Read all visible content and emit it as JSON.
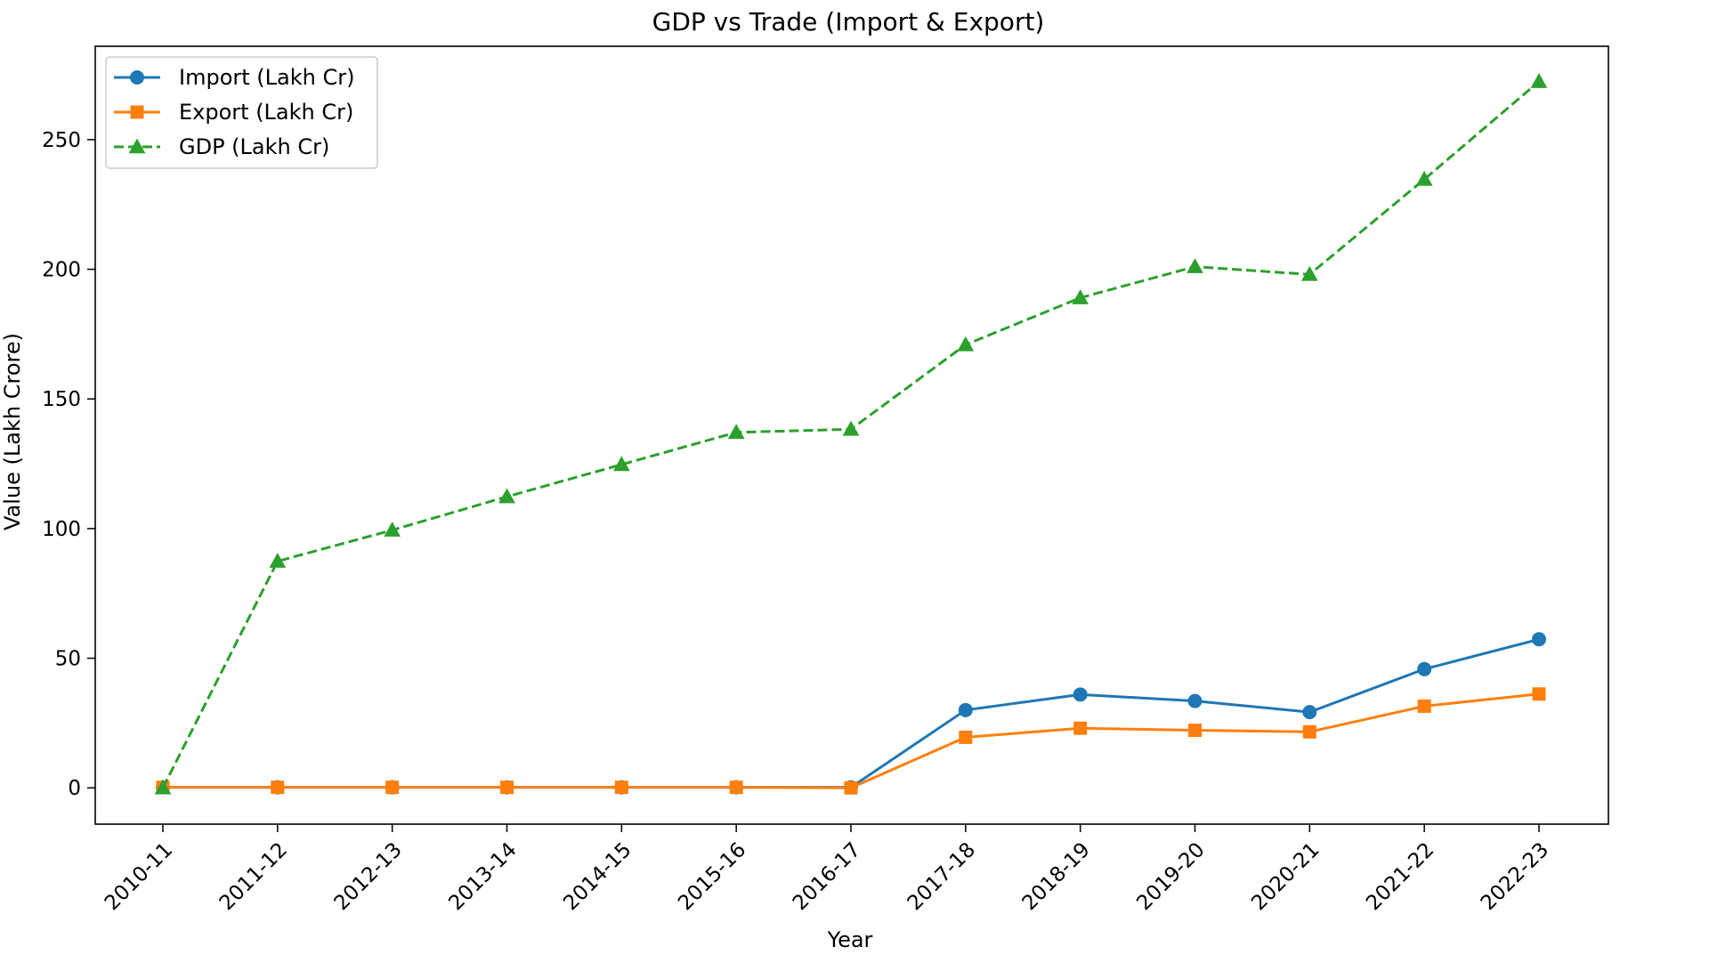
{
  "chart_data": {
    "type": "line",
    "title": "GDP vs Trade (Import & Export)",
    "xlabel": "Year",
    "ylabel": "Value (Lakh Crore)",
    "categories": [
      "2010-11",
      "2011-12",
      "2012-13",
      "2013-14",
      "2014-15",
      "2015-16",
      "2016-17",
      "2017-18",
      "2018-19",
      "2019-20",
      "2020-21",
      "2021-22",
      "2022-23"
    ],
    "ylim": [
      -14,
      286
    ],
    "yticks": [
      0,
      50,
      100,
      150,
      200,
      250
    ],
    "grid": false,
    "legend_position": "top-left",
    "series": [
      {
        "name": "Import (Lakh Cr)",
        "color": "#1f77b4",
        "marker": "circle",
        "linestyle": "solid",
        "values": [
          0.2,
          0.2,
          0.2,
          0.2,
          0.2,
          0.2,
          0.2,
          30.0,
          36.0,
          33.5,
          29.2,
          45.8,
          57.3
        ]
      },
      {
        "name": "Export (Lakh Cr)",
        "color": "#ff7f0e",
        "marker": "square",
        "linestyle": "solid",
        "values": [
          0.2,
          0.2,
          0.2,
          0.2,
          0.2,
          0.2,
          0.0,
          19.5,
          23.0,
          22.2,
          21.6,
          31.5,
          36.2
        ]
      },
      {
        "name": "GDP (Lakh Cr)",
        "color": "#2ca02c",
        "marker": "triangle",
        "linestyle": "dashed",
        "values": [
          0.0,
          87.4,
          99.4,
          112.3,
          124.7,
          137.1,
          138.3,
          170.9,
          189.0,
          201.0,
          198.0,
          234.7,
          272.4
        ]
      }
    ]
  }
}
